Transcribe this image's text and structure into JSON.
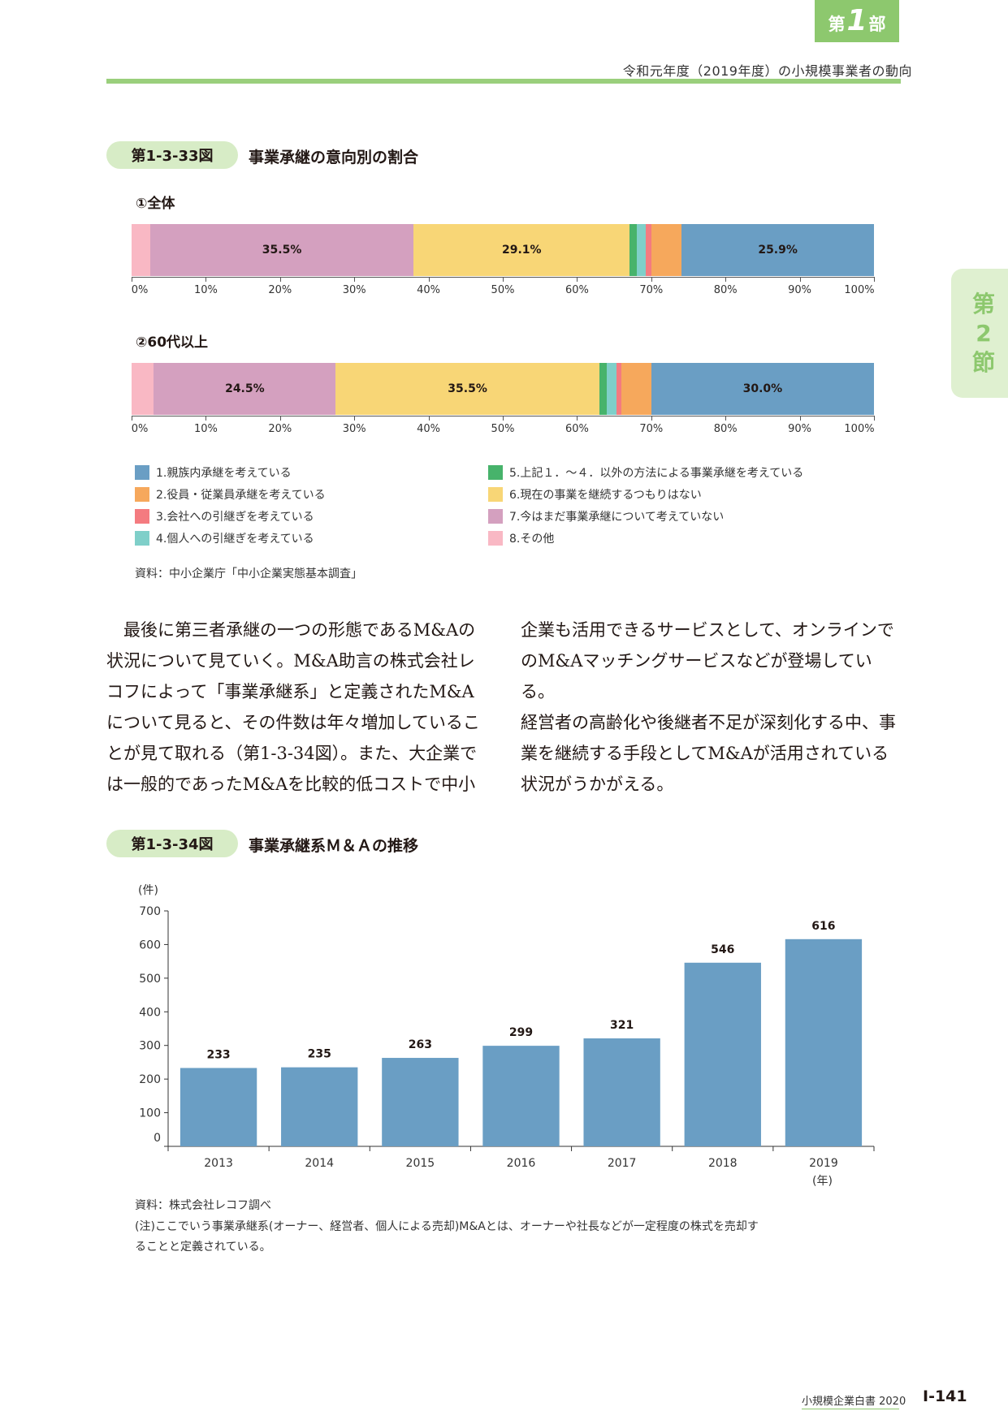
{
  "header": {
    "part_kanji_pre": "第",
    "part_number": "1",
    "part_kanji_post": "部",
    "running_title": "令和元年度（2019年度）の小規模事業者の動向"
  },
  "section_tab": {
    "chars": [
      "第",
      "2",
      "節"
    ]
  },
  "figure33": {
    "label": "第1-3-33図",
    "title": "事業承継の意向別の割合",
    "panel1_title": "①全体",
    "panel2_title": "②60代以上",
    "source": "資料：中小企業庁「中小企業実態基本調査」"
  },
  "figure34": {
    "label": "第1-3-34図",
    "title": "事業承継系Ｍ＆Ａの推移",
    "y_unit": "(件)",
    "x_unit": "(年)",
    "source": "資料：株式会社レコフ調べ",
    "note_line1": "(注)ここでいう事業承継系(オーナー、経営者、個人による売却)M&Aとは、オーナーや社長などが一定程度の株式を売却す",
    "note_line2": "ることと定義されている。"
  },
  "body_text": {
    "left": [
      "　最後に第三者承継の一つの形態であるM&Aの",
      "状況について見ていく。M&A助言の株式会社レ",
      "コフによって「事業承継系」と定義されたM&A",
      "について見ると、その件数は年々増加しているこ",
      "とが見て取れる（第1-3-34図）。また、大企業で",
      "は一般的であったM&Aを比較的低コストで中小"
    ],
    "right": [
      "企業も活用できるサービスとして、オンラインで",
      "のM&Aマッチングサービスなどが登場している。",
      "経営者の高齢化や後継者不足が深刻化する中、事",
      "業を継続する手段としてM&Aが活用されている",
      "状況がうかがえる。"
    ]
  },
  "footer": {
    "book_title": "小規模企業白書  2020",
    "page_number": "Ⅰ-141"
  },
  "colors": {
    "accent_green": "#8dc86e",
    "c1": "#6a9ec4",
    "c2": "#f6a85c",
    "c3": "#f47b80",
    "c4": "#7fcfc9",
    "c5": "#47b36b",
    "c6": "#f8d676",
    "c7": "#d4a0bf",
    "c8": "#f9b8c4"
  },
  "chart_data": [
    {
      "type": "bar",
      "orientation": "horizontal-stacked",
      "title": "①全体",
      "categories": [
        "①全体"
      ],
      "x_ticks": [
        "0%",
        "10%",
        "20%",
        "30%",
        "40%",
        "50%",
        "60%",
        "70%",
        "80%",
        "90%",
        "100%"
      ],
      "xlim": [
        0,
        100
      ],
      "series": [
        {
          "name": "8.その他",
          "values": [
            2.5
          ],
          "label": ""
        },
        {
          "name": "7.今はまだ事業承継について考えていない",
          "values": [
            35.5
          ],
          "label": "35.5%"
        },
        {
          "name": "6.現在の事業を継続するつもりはない",
          "values": [
            29.1
          ],
          "label": "29.1%"
        },
        {
          "name": "5.上記１．～４．以外の方法による事業承継を考えている",
          "values": [
            1.0
          ],
          "label": ""
        },
        {
          "name": "4.個人への引継ぎを考えている",
          "values": [
            1.2
          ],
          "label": ""
        },
        {
          "name": "3.会社への引継ぎを考えている",
          "values": [
            0.7
          ],
          "label": ""
        },
        {
          "name": "2.役員・従業員承継を考えている",
          "values": [
            4.1
          ],
          "label": ""
        },
        {
          "name": "1.親族内承継を考えている",
          "values": [
            25.9
          ],
          "label": "25.9%"
        }
      ]
    },
    {
      "type": "bar",
      "orientation": "horizontal-stacked",
      "title": "②60代以上",
      "categories": [
        "②60代以上"
      ],
      "x_ticks": [
        "0%",
        "10%",
        "20%",
        "30%",
        "40%",
        "50%",
        "60%",
        "70%",
        "80%",
        "90%",
        "100%"
      ],
      "xlim": [
        0,
        100
      ],
      "series": [
        {
          "name": "8.その他",
          "values": [
            3.0
          ],
          "label": ""
        },
        {
          "name": "7.今はまだ事業承継について考えていない",
          "values": [
            24.5
          ],
          "label": "24.5%"
        },
        {
          "name": "6.現在の事業を継続するつもりはない",
          "values": [
            35.5
          ],
          "label": "35.5%"
        },
        {
          "name": "5.上記１．～４．以外の方法による事業承継を考えている",
          "values": [
            1.0
          ],
          "label": ""
        },
        {
          "name": "4.個人への引継ぎを考えている",
          "values": [
            1.3
          ],
          "label": ""
        },
        {
          "name": "3.会社への引継ぎを考えている",
          "values": [
            0.7
          ],
          "label": ""
        },
        {
          "name": "2.役員・従業員承継を考えている",
          "values": [
            4.0
          ],
          "label": ""
        },
        {
          "name": "1.親族内承継を考えている",
          "values": [
            30.0
          ],
          "label": "30.0%"
        }
      ]
    },
    {
      "type": "bar",
      "title": "事業承継系Ｍ＆Ａの推移",
      "categories": [
        "2013",
        "2014",
        "2015",
        "2016",
        "2017",
        "2018",
        "2019"
      ],
      "values": [
        233,
        235,
        263,
        299,
        321,
        546,
        616
      ],
      "ylabel": "(件)",
      "xlabel": "(年)",
      "ylim": [
        0,
        700
      ],
      "y_ticks": [
        "0",
        "100",
        "200",
        "300",
        "400",
        "500",
        "600",
        "700"
      ]
    }
  ],
  "legend": {
    "left": [
      {
        "label": "1.親族内承継を考えている",
        "color": "#6a9ec4"
      },
      {
        "label": "2.役員・従業員承継を考えている",
        "color": "#f6a85c"
      },
      {
        "label": "3.会社への引継ぎを考えている",
        "color": "#f47b80"
      },
      {
        "label": "4.個人への引継ぎを考えている",
        "color": "#7fcfc9"
      }
    ],
    "right": [
      {
        "label": "5.上記１．～４．以外の方法による事業承継を考えている",
        "color": "#47b36b"
      },
      {
        "label": "6.現在の事業を継続するつもりはない",
        "color": "#f8d676"
      },
      {
        "label": "7.今はまだ事業承継について考えていない",
        "color": "#d4a0bf"
      },
      {
        "label": "8.その他",
        "color": "#f9b8c4"
      }
    ]
  }
}
